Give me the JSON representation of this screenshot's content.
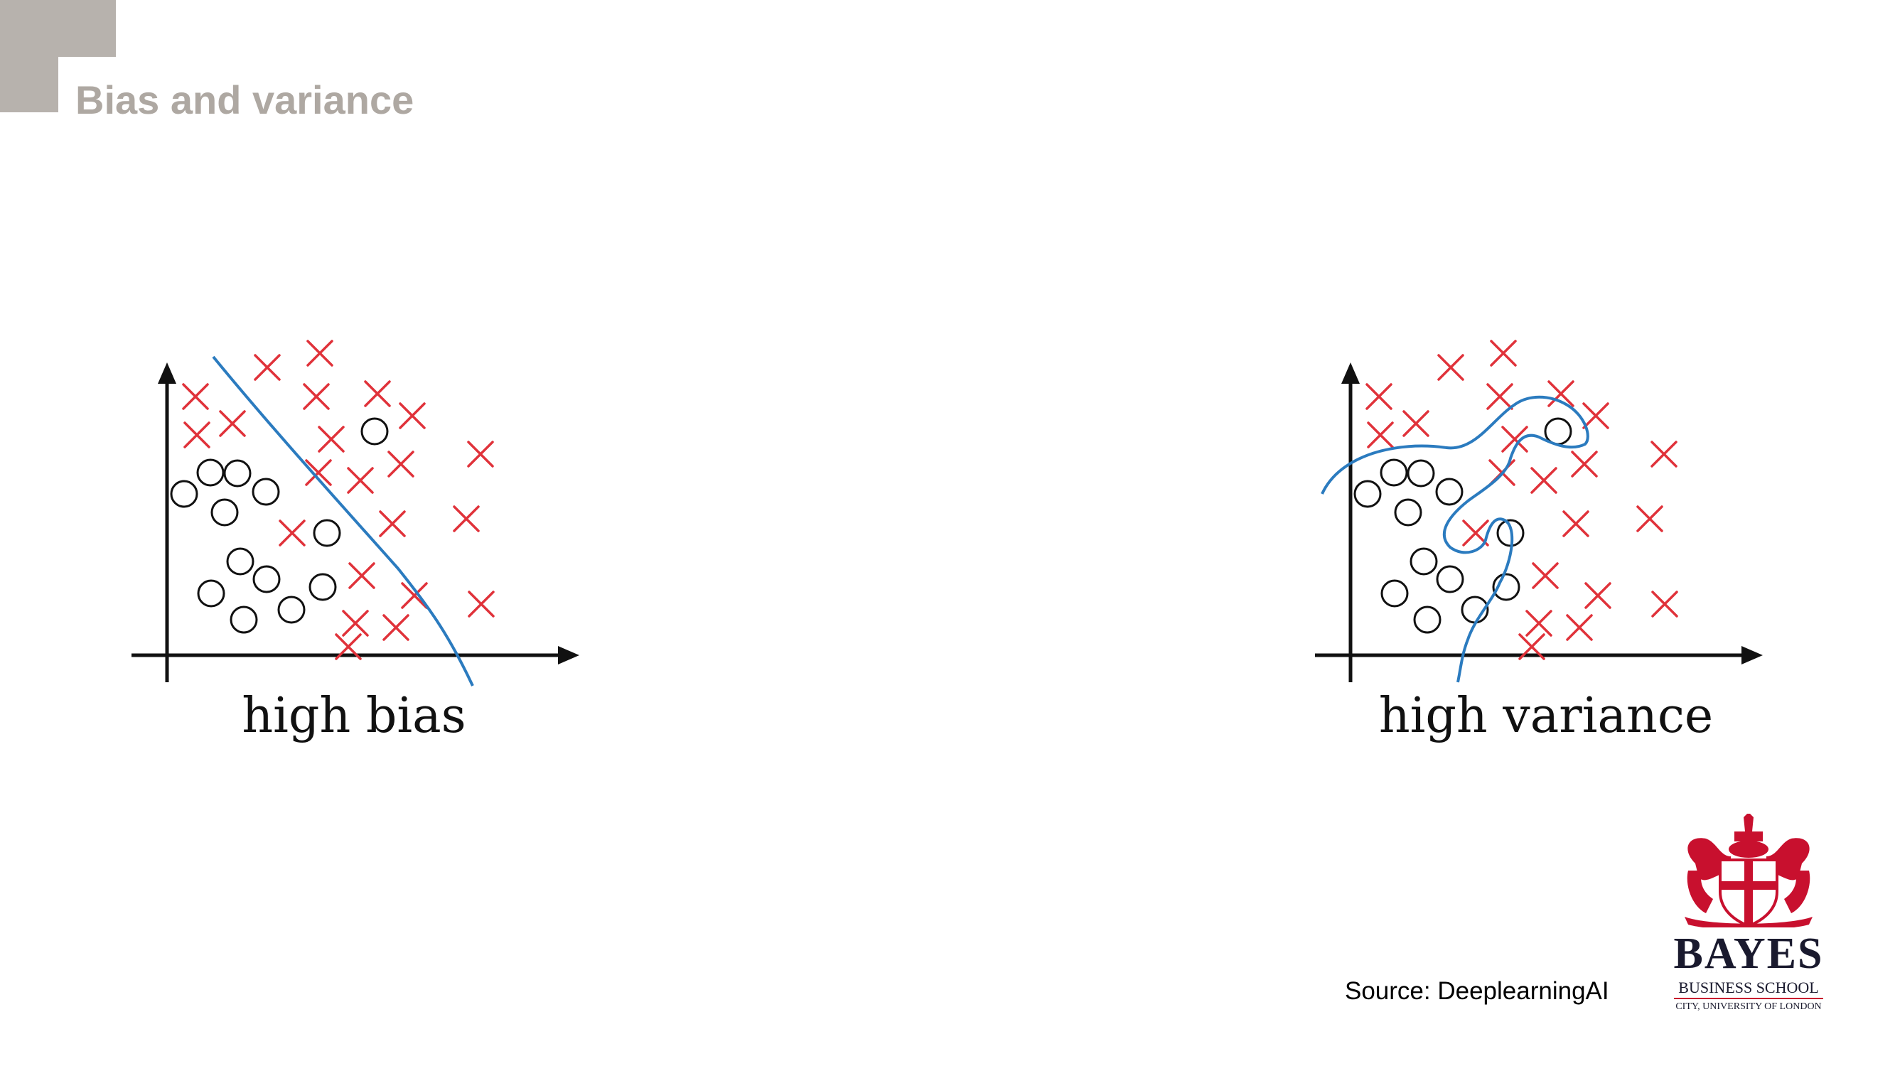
{
  "slide": {
    "title": "Bias and variance",
    "source": "Source: DeeplearningAI"
  },
  "colors": {
    "accent_gray": "#b7b2ad",
    "title_gray": "#aea8a2",
    "cross_red": "#e0323a",
    "boundary_blue": "#2b7bbf",
    "logo_red": "#c8102e"
  },
  "panels": [
    {
      "caption": "high bias",
      "boundary": "linear"
    },
    {
      "caption": "high variance",
      "boundary": "wiggly"
    }
  ],
  "logo": {
    "line1": "BAYES",
    "line2": "BUSINESS SCHOOL",
    "line3": "CITY, UNIVERSITY OF LONDON"
  }
}
